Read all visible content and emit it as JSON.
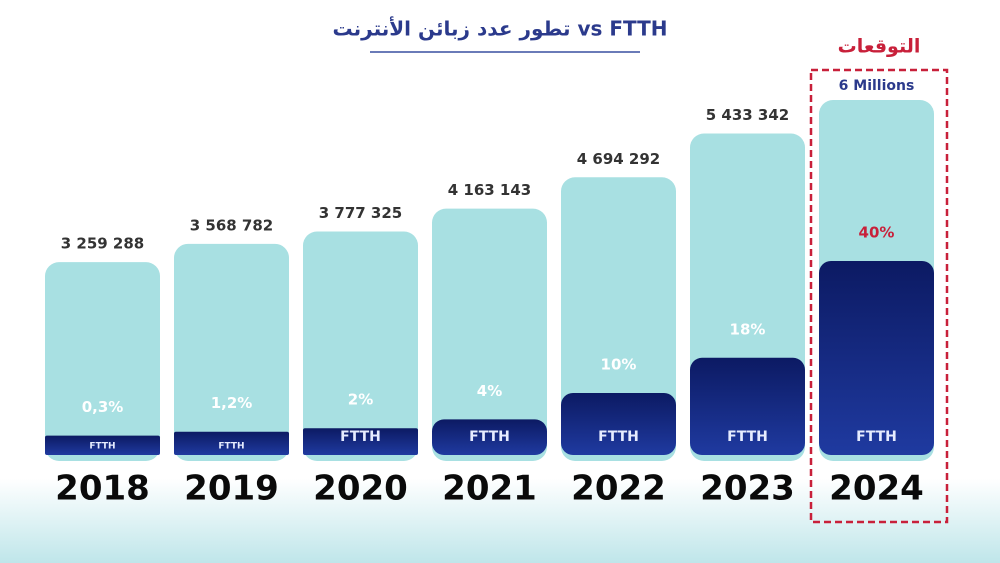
{
  "chart_data": {
    "type": "bar",
    "title": "تطور عدد زبائن الأنترنت vs FTTH",
    "annotation": "التوقعات",
    "categories": [
      "2018",
      "2019",
      "2020",
      "2021",
      "2022",
      "2023",
      "2024"
    ],
    "series": [
      {
        "color": "#a8e0e2",
        "values": [
          3259288,
          3568782,
          3777325,
          4163143,
          4694292,
          5433342,
          6000000
        ],
        "value_labels": [
          "3 259 288",
          "3 568 782",
          "3 777 325",
          "4 163 143",
          "4 694 292",
          "5 433 342",
          "6 Millions"
        ]
      },
      {
        "name": "FTTH",
        "color": "#10207a",
        "values": [
          0.3,
          1.2,
          2,
          4,
          10,
          18,
          40
        ],
        "value_labels": [
          "0,3%",
          "1,2%",
          "2%",
          "4%",
          "10%",
          "18%",
          "40%"
        ]
      }
    ]
  }
}
